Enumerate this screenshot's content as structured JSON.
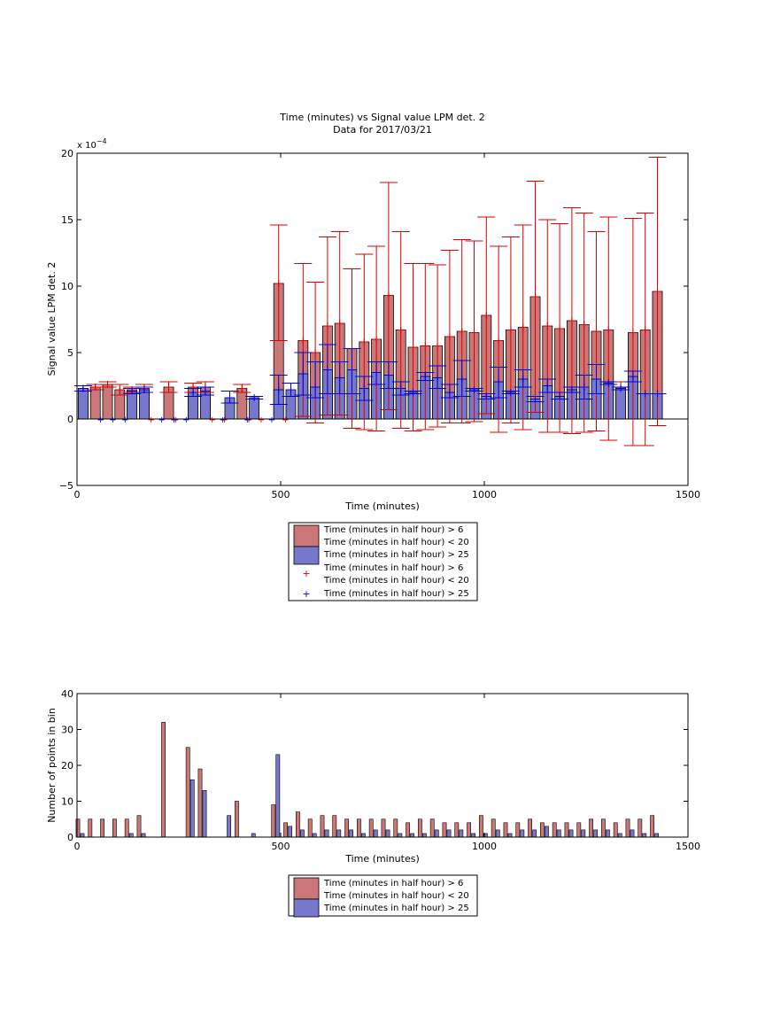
{
  "chart_data": [
    {
      "type": "bar",
      "title": "Time (minutes) vs Signal value LPM det. 2",
      "subtitle": "Data for 2017/03/21",
      "xlabel": "Time (minutes)",
      "ylabel": "Signal value LPM det. 2",
      "exponent_label": "x 10",
      "exponent_power": "−4",
      "xlim": [
        0,
        1500
      ],
      "ylim": [
        -5,
        20
      ],
      "xticks": [
        0,
        500,
        1000,
        1500
      ],
      "yticks": [
        -5,
        0,
        5,
        10,
        15,
        20
      ],
      "grid": false,
      "legend": {
        "placement": "below",
        "entries": [
          {
            "kind": "patch",
            "color": "#cc7777",
            "label": "Time (minutes in half hour) > 6\nTime (minutes in half hour) < 20"
          },
          {
            "kind": "patch",
            "color": "#7777cc",
            "label": "Time (minutes in half hour) > 25"
          },
          {
            "kind": "plus",
            "color": "#dd0000",
            "label": "Time (minutes in half hour) > 6\nTime (minutes in half hour) < 20"
          },
          {
            "kind": "plus",
            "color": "#0000dd",
            "label": "Time (minutes in half hour) > 25"
          }
        ]
      },
      "series": [
        {
          "color": "#cc7777",
          "err_color": "#dd0000",
          "points": [
            {
              "x": 15,
              "y": 2.3,
              "lo": 2.1,
              "hi": 2.5
            },
            {
              "x": 45,
              "y": 2.4,
              "lo": 2.2,
              "hi": 2.6
            },
            {
              "x": 75,
              "y": 2.6,
              "lo": 2.4,
              "hi": 2.8
            },
            {
              "x": 105,
              "y": 2.2,
              "lo": 1.8,
              "hi": 2.6
            },
            {
              "x": 135,
              "y": 2.2,
              "lo": 2.0,
              "hi": 2.4
            },
            {
              "x": 165,
              "y": 2.3,
              "lo": 2.0,
              "hi": 2.6
            },
            {
              "x": 195,
              "y": 0,
              "lo": 0,
              "hi": 0
            },
            {
              "x": 225,
              "y": 2.4,
              "lo": 2.0,
              "hi": 2.8
            },
            {
              "x": 255,
              "y": 0,
              "lo": 0,
              "hi": 0
            },
            {
              "x": 285,
              "y": 2.4,
              "lo": 2.0,
              "hi": 2.7
            },
            {
              "x": 315,
              "y": 2.4,
              "lo": 2.0,
              "hi": 2.8
            },
            {
              "x": 345,
              "y": 0,
              "lo": 0,
              "hi": 0
            },
            {
              "x": 375,
              "y": 0,
              "lo": 0,
              "hi": 0
            },
            {
              "x": 405,
              "y": 2.3,
              "lo": 2.0,
              "hi": 2.6
            },
            {
              "x": 435,
              "y": 0,
              "lo": 0,
              "hi": 0
            },
            {
              "x": 465,
              "y": 0,
              "lo": 0,
              "hi": 0
            },
            {
              "x": 495,
              "y": 10.2,
              "lo": 5.9,
              "hi": 14.6
            },
            {
              "x": 525,
              "y": 0,
              "lo": 0,
              "hi": 0
            },
            {
              "x": 555,
              "y": 5.9,
              "lo": 0.2,
              "hi": 11.7
            },
            {
              "x": 585,
              "y": 5.0,
              "lo": -0.3,
              "hi": 10.3
            },
            {
              "x": 615,
              "y": 7.0,
              "lo": 0.3,
              "hi": 13.7
            },
            {
              "x": 645,
              "y": 7.2,
              "lo": 0.3,
              "hi": 14.1
            },
            {
              "x": 675,
              "y": 5.3,
              "lo": -0.7,
              "hi": 11.3
            },
            {
              "x": 705,
              "y": 5.8,
              "lo": -0.8,
              "hi": 12.4
            },
            {
              "x": 735,
              "y": 6.0,
              "lo": -0.9,
              "hi": 13.0
            },
            {
              "x": 765,
              "y": 9.3,
              "lo": 0.7,
              "hi": 17.8
            },
            {
              "x": 795,
              "y": 6.7,
              "lo": -0.7,
              "hi": 14.1
            },
            {
              "x": 825,
              "y": 5.4,
              "lo": -0.9,
              "hi": 11.7
            },
            {
              "x": 855,
              "y": 5.5,
              "lo": -0.8,
              "hi": 11.7
            },
            {
              "x": 885,
              "y": 5.5,
              "lo": -0.6,
              "hi": 11.6
            },
            {
              "x": 915,
              "y": 6.2,
              "lo": -0.3,
              "hi": 12.7
            },
            {
              "x": 945,
              "y": 6.6,
              "lo": -0.3,
              "hi": 13.5
            },
            {
              "x": 975,
              "y": 6.5,
              "lo": -0.2,
              "hi": 13.4
            },
            {
              "x": 1005,
              "y": 7.8,
              "lo": 0.4,
              "hi": 15.2
            },
            {
              "x": 1035,
              "y": 5.9,
              "lo": -1.0,
              "hi": 13.0
            },
            {
              "x": 1065,
              "y": 6.7,
              "lo": -0.3,
              "hi": 13.7
            },
            {
              "x": 1095,
              "y": 6.9,
              "lo": -0.8,
              "hi": 14.6
            },
            {
              "x": 1125,
              "y": 9.2,
              "lo": 0.5,
              "hi": 17.9
            },
            {
              "x": 1155,
              "y": 7.0,
              "lo": -1.0,
              "hi": 15.0
            },
            {
              "x": 1185,
              "y": 6.8,
              "lo": -1.0,
              "hi": 14.7
            },
            {
              "x": 1215,
              "y": 7.4,
              "lo": -1.1,
              "hi": 15.9
            },
            {
              "x": 1245,
              "y": 7.1,
              "lo": -1.0,
              "hi": 15.5
            },
            {
              "x": 1275,
              "y": 6.6,
              "lo": -0.9,
              "hi": 14.1
            },
            {
              "x": 1305,
              "y": 6.7,
              "lo": -1.6,
              "hi": 15.2
            },
            {
              "x": 1335,
              "y": 2.4,
              "lo": 2.2,
              "hi": 2.8
            },
            {
              "x": 1365,
              "y": 6.5,
              "lo": -2.0,
              "hi": 15.1
            },
            {
              "x": 1395,
              "y": 6.7,
              "lo": -2.0,
              "hi": 15.5
            },
            {
              "x": 1425,
              "y": 9.6,
              "lo": -0.5,
              "hi": 19.7
            }
          ]
        },
        {
          "color": "#7777cc",
          "err_color": "#0000dd",
          "points": [
            {
              "x": 15,
              "y": 2.3,
              "lo": 2.1,
              "hi": 2.5
            },
            {
              "x": 45,
              "y": 0,
              "lo": 0,
              "hi": 0
            },
            {
              "x": 75,
              "y": 0,
              "lo": 0,
              "hi": 0
            },
            {
              "x": 105,
              "y": 0,
              "lo": 0,
              "hi": 0
            },
            {
              "x": 135,
              "y": 2.1,
              "lo": 1.9,
              "hi": 2.3
            },
            {
              "x": 165,
              "y": 2.2,
              "lo": 2.0,
              "hi": 2.4
            },
            {
              "x": 195,
              "y": 0,
              "lo": 0,
              "hi": 0
            },
            {
              "x": 225,
              "y": 0,
              "lo": 0,
              "hi": 0
            },
            {
              "x": 255,
              "y": 0,
              "lo": 0,
              "hi": 0
            },
            {
              "x": 285,
              "y": 2.0,
              "lo": 1.7,
              "hi": 2.3
            },
            {
              "x": 315,
              "y": 2.1,
              "lo": 1.8,
              "hi": 2.4
            },
            {
              "x": 345,
              "y": 0,
              "lo": 0,
              "hi": 0
            },
            {
              "x": 375,
              "y": 1.6,
              "lo": 1.2,
              "hi": 2.1
            },
            {
              "x": 405,
              "y": 0,
              "lo": 0,
              "hi": 0
            },
            {
              "x": 435,
              "y": 1.6,
              "lo": 1.5,
              "hi": 1.7
            },
            {
              "x": 465,
              "y": 0,
              "lo": 0,
              "hi": 0
            },
            {
              "x": 495,
              "y": 2.2,
              "lo": 1.1,
              "hi": 3.3
            },
            {
              "x": 525,
              "y": 2.2,
              "lo": 1.7,
              "hi": 2.7
            },
            {
              "x": 555,
              "y": 3.4,
              "lo": 1.8,
              "hi": 5.0
            },
            {
              "x": 585,
              "y": 2.4,
              "lo": 1.6,
              "hi": 4.3
            },
            {
              "x": 615,
              "y": 3.7,
              "lo": 1.9,
              "hi": 5.6
            },
            {
              "x": 645,
              "y": 3.1,
              "lo": 1.9,
              "hi": 4.3
            },
            {
              "x": 675,
              "y": 3.7,
              "lo": 1.9,
              "hi": 5.3
            },
            {
              "x": 705,
              "y": 2.3,
              "lo": 1.4,
              "hi": 3.2
            },
            {
              "x": 735,
              "y": 3.5,
              "lo": 2.6,
              "hi": 4.3
            },
            {
              "x": 765,
              "y": 3.3,
              "lo": 2.3,
              "hi": 4.3
            },
            {
              "x": 795,
              "y": 2.3,
              "lo": 1.8,
              "hi": 2.8
            },
            {
              "x": 825,
              "y": 2.0,
              "lo": 1.9,
              "hi": 2.1
            },
            {
              "x": 855,
              "y": 3.2,
              "lo": 2.9,
              "hi": 3.5
            },
            {
              "x": 885,
              "y": 3.1,
              "lo": 2.3,
              "hi": 4.0
            },
            {
              "x": 915,
              "y": 2.0,
              "lo": 1.6,
              "hi": 2.6
            },
            {
              "x": 945,
              "y": 3.0,
              "lo": 1.7,
              "hi": 4.4
            },
            {
              "x": 975,
              "y": 2.2,
              "lo": 2.1,
              "hi": 2.3
            },
            {
              "x": 1005,
              "y": 1.7,
              "lo": 1.5,
              "hi": 1.9
            },
            {
              "x": 1035,
              "y": 2.8,
              "lo": 1.6,
              "hi": 3.9
            },
            {
              "x": 1065,
              "y": 2.0,
              "lo": 1.9,
              "hi": 2.1
            },
            {
              "x": 1095,
              "y": 3.0,
              "lo": 2.4,
              "hi": 3.7
            },
            {
              "x": 1125,
              "y": 1.5,
              "lo": 1.3,
              "hi": 1.7
            },
            {
              "x": 1155,
              "y": 2.5,
              "lo": 2.0,
              "hi": 3.0
            },
            {
              "x": 1185,
              "y": 1.7,
              "lo": 1.5,
              "hi": 2.0
            },
            {
              "x": 1215,
              "y": 2.2,
              "lo": 2.0,
              "hi": 2.4
            },
            {
              "x": 1245,
              "y": 2.4,
              "lo": 1.5,
              "hi": 3.3
            },
            {
              "x": 1275,
              "y": 3.0,
              "lo": 1.9,
              "hi": 4.1
            },
            {
              "x": 1305,
              "y": 2.7,
              "lo": 2.6,
              "hi": 2.8
            },
            {
              "x": 1335,
              "y": 2.3,
              "lo": 2.2,
              "hi": 2.4
            },
            {
              "x": 1365,
              "y": 3.2,
              "lo": 2.8,
              "hi": 3.6
            },
            {
              "x": 1395,
              "y": 1.9,
              "lo": 1.9,
              "hi": 1.9
            },
            {
              "x": 1425,
              "y": 1.9,
              "lo": 1.9,
              "hi": 1.9
            }
          ]
        }
      ]
    },
    {
      "type": "bar",
      "xlabel": "Time (minutes)",
      "ylabel": "Number of points in bin",
      "xlim": [
        0,
        1500
      ],
      "ylim": [
        0,
        40
      ],
      "xticks": [
        0,
        500,
        1000,
        1500
      ],
      "yticks": [
        0,
        10,
        20,
        30,
        40
      ],
      "grid": false,
      "legend": {
        "placement": "below",
        "entries": [
          {
            "kind": "patch",
            "color": "#cc7777",
            "label": "Time (minutes in half hour) > 6\nTime (minutes in half hour) < 20"
          },
          {
            "kind": "patch",
            "color": "#7777cc",
            "label": "Time (minutes in half hour) > 25"
          }
        ]
      },
      "x": [
        15,
        45,
        75,
        105,
        135,
        165,
        195,
        225,
        255,
        285,
        315,
        345,
        375,
        405,
        435,
        465,
        495,
        525,
        555,
        585,
        615,
        645,
        675,
        705,
        735,
        765,
        795,
        825,
        855,
        885,
        915,
        945,
        975,
        1005,
        1035,
        1065,
        1095,
        1125,
        1155,
        1185,
        1215,
        1245,
        1275,
        1305,
        1335,
        1365,
        1395,
        1425
      ],
      "series": [
        {
          "color": "#cc7777",
          "values": [
            5,
            5,
            5,
            5,
            5,
            6,
            0,
            32,
            0,
            25,
            19,
            0,
            0,
            10,
            0,
            0,
            9,
            4,
            7,
            5,
            6,
            6,
            5,
            5,
            5,
            5,
            5,
            4,
            5,
            5,
            4,
            4,
            4,
            6,
            5,
            4,
            4,
            5,
            4,
            4,
            4,
            4,
            5,
            5,
            4,
            5,
            5,
            6
          ]
        },
        {
          "color": "#7777cc",
          "values": [
            1,
            0,
            0,
            0,
            1,
            1,
            0,
            0,
            0,
            16,
            13,
            0,
            6,
            0,
            1,
            0,
            23,
            3,
            2,
            1,
            2,
            2,
            2,
            1,
            2,
            2,
            1,
            1,
            1,
            2,
            2,
            2,
            1,
            1,
            2,
            1,
            2,
            2,
            3,
            2,
            2,
            2,
            2,
            2,
            1,
            2,
            1,
            1
          ]
        }
      ]
    }
  ]
}
